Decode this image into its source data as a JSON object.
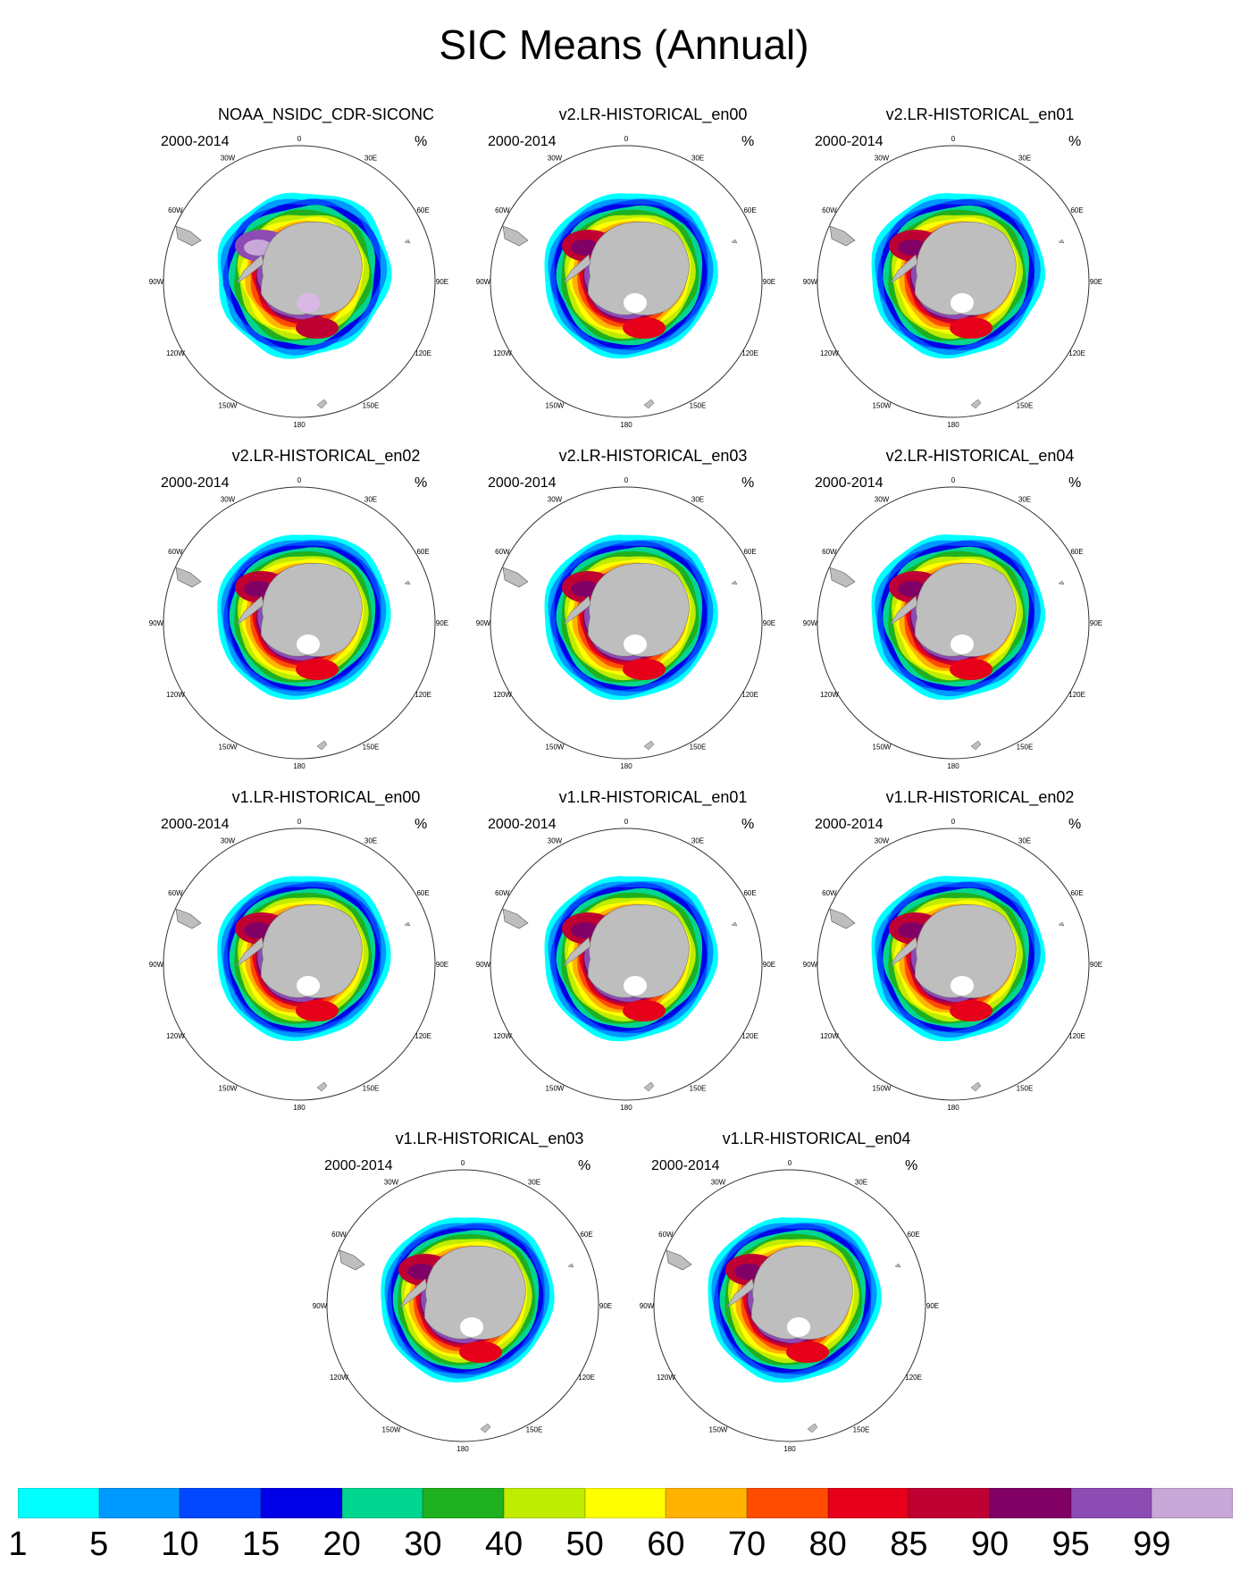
{
  "title": "SIC Means (Annual)",
  "period": "2000-2014",
  "units": "%",
  "lon_labels": [
    "0",
    "30E",
    "60E",
    "90E",
    "120E",
    "150E",
    "180",
    "150W",
    "120W",
    "90W",
    "60W",
    "30W"
  ],
  "panels": [
    {
      "title": "NOAA_NSIDC_CDR-SICONC",
      "variant": "obs"
    },
    {
      "title": "v2.LR-HISTORICAL_en00",
      "variant": "model"
    },
    {
      "title": "v2.LR-HISTORICAL_en01",
      "variant": "model"
    },
    {
      "title": "v2.LR-HISTORICAL_en02",
      "variant": "model"
    },
    {
      "title": "v2.LR-HISTORICAL_en03",
      "variant": "model"
    },
    {
      "title": "v2.LR-HISTORICAL_en04",
      "variant": "model"
    },
    {
      "title": "v1.LR-HISTORICAL_en00",
      "variant": "model"
    },
    {
      "title": "v1.LR-HISTORICAL_en01",
      "variant": "model"
    },
    {
      "title": "v1.LR-HISTORICAL_en02",
      "variant": "model"
    },
    {
      "title": "v1.LR-HISTORICAL_en03",
      "variant": "model"
    },
    {
      "title": "v1.LR-HISTORICAL_en04",
      "variant": "model"
    }
  ],
  "colorbar": {
    "colors": [
      "#00ffff",
      "#0099ff",
      "#0047ff",
      "#0000e6",
      "#00d68f",
      "#1fb01f",
      "#bfec00",
      "#ffff00",
      "#ffb300",
      "#ff4c00",
      "#e6001a",
      "#bf0033",
      "#800066",
      "#8c4cb3",
      "#c8a8d8"
    ],
    "labels": [
      "1",
      "5",
      "10",
      "15",
      "20",
      "30",
      "40",
      "50",
      "60",
      "70",
      "80",
      "85",
      "90",
      "95",
      "99"
    ]
  },
  "land_color": "#bebebe"
}
